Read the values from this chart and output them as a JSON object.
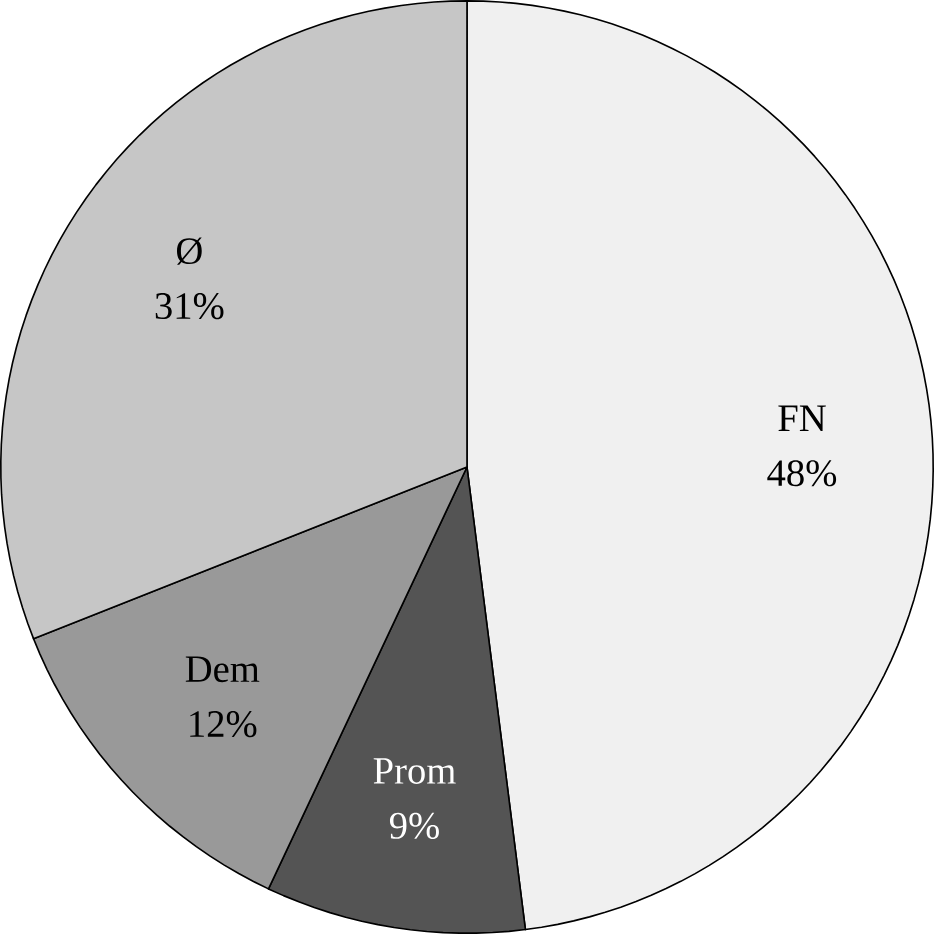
{
  "chart_data": {
    "type": "pie",
    "categories": [
      "FN",
      "Prom",
      "Dem",
      "Ø"
    ],
    "values": [
      48,
      9,
      12,
      31
    ],
    "colors": [
      "#f0f0f0",
      "#545454",
      "#999999",
      "#c6c6c6"
    ],
    "value_labels": [
      "48%",
      "9%",
      "12%",
      "31%"
    ]
  }
}
